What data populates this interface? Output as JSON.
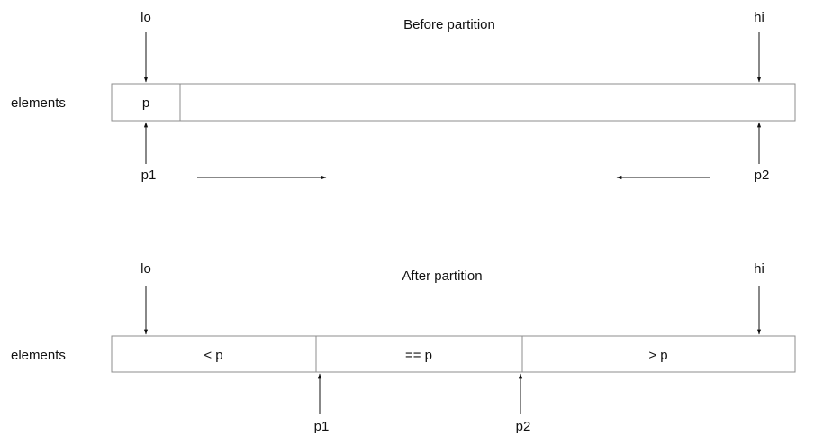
{
  "before": {
    "title": "Before partition",
    "row_label": "elements",
    "lo_label": "lo",
    "hi_label": "hi",
    "pivot_cell": "p",
    "p1_label": "p1",
    "p2_label": "p2"
  },
  "after": {
    "title": "After partition",
    "row_label": "elements",
    "lo_label": "lo",
    "hi_label": "hi",
    "cells": [
      "< p",
      "== p",
      "> p"
    ],
    "p1_label": "p1",
    "p2_label": "p2"
  },
  "colors": {
    "box_stroke": "#8c8c8c",
    "text": "#111111"
  }
}
